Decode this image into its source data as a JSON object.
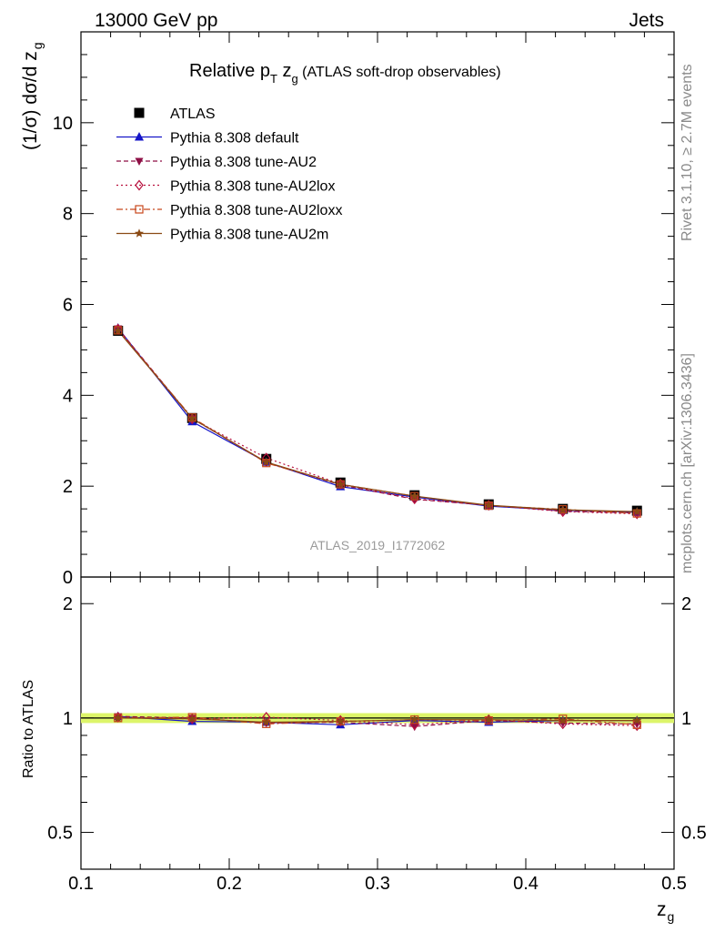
{
  "header": {
    "left": "13000 GeV pp",
    "right": "Jets"
  },
  "title": {
    "prefix": "Relative p",
    "sub1": "T",
    "mid": " z",
    "sub2": "g",
    "suffix": " (ATLAS soft-drop observables)"
  },
  "ylabel_main": {
    "text": "(1/σ) dσ/d z",
    "sub": "g"
  },
  "ylabel_ratio": "Ratio to ATLAS",
  "xlabel": {
    "text": "z",
    "sub": "g"
  },
  "watermark": "ATLAS_2019_I1772062",
  "side_text": {
    "rivet": "Rivet 3.1.10, ≥ 2.7M events",
    "mcplots": "mcplots.cern.ch [arXiv:1306.3436]"
  },
  "chart_data": [
    {
      "type": "line",
      "panel": "main",
      "xlim": [
        0.1,
        0.5
      ],
      "ylim": [
        0,
        12
      ],
      "x_ticks": [
        0.1,
        0.2,
        0.3,
        0.4,
        0.5
      ],
      "y_ticks": [
        0,
        2,
        4,
        6,
        8,
        10
      ],
      "y_tick_labels": [
        "0",
        "2",
        "4",
        "6",
        "8",
        "10"
      ],
      "x": [
        0.125,
        0.175,
        0.225,
        0.275,
        0.325,
        0.375,
        0.425,
        0.475
      ],
      "series": [
        {
          "name": "ATLAS",
          "color": "#000000",
          "marker": "square",
          "line": "none",
          "values": [
            5.42,
            3.5,
            2.6,
            2.08,
            1.8,
            1.6,
            1.5,
            1.46
          ]
        },
        {
          "name": "Pythia 8.308 default",
          "color": "#1515c8",
          "marker": "triangle-up",
          "line": "solid",
          "values": [
            5.48,
            3.42,
            2.53,
            1.99,
            1.76,
            1.56,
            1.47,
            1.43
          ]
        },
        {
          "name": "Pythia 8.308 tune-AU2",
          "color": "#8e0f45",
          "marker": "triangle-down",
          "line": "dashed",
          "values": [
            5.47,
            3.49,
            2.52,
            2.03,
            1.71,
            1.58,
            1.45,
            1.41
          ]
        },
        {
          "name": "Pythia 8.308 tune-AU2lox",
          "color": "#b8103e",
          "marker": "diamond-open",
          "line": "dotted",
          "values": [
            5.46,
            3.48,
            2.62,
            2.05,
            1.72,
            1.58,
            1.44,
            1.39
          ]
        },
        {
          "name": "Pythia 8.308 tune-AU2loxx",
          "color": "#c8471c",
          "marker": "square-open",
          "line": "dashdot",
          "values": [
            5.43,
            3.51,
            2.51,
            2.04,
            1.78,
            1.57,
            1.49,
            1.4
          ]
        },
        {
          "name": "Pythia 8.308 tune-AU2m",
          "color": "#8a4a14",
          "marker": "star",
          "line": "solid",
          "values": [
            5.42,
            3.49,
            2.53,
            2.04,
            1.78,
            1.58,
            1.48,
            1.44
          ]
        }
      ]
    },
    {
      "type": "line",
      "panel": "ratio",
      "xlim": [
        0.1,
        0.5
      ],
      "ylim": [
        0.4,
        2.35
      ],
      "x_tick_labels": [
        "0.1",
        "0.2",
        "0.3",
        "0.4",
        "0.5"
      ],
      "y_tick_labels": [
        "0.5",
        "1",
        "2"
      ],
      "band": {
        "low": 0.97,
        "high": 1.03,
        "color": "#ddf56a"
      },
      "x": [
        0.125,
        0.175,
        0.225,
        0.275,
        0.325,
        0.375,
        0.425,
        0.475
      ],
      "series": [
        {
          "name": "ATLAS",
          "values": [
            1,
            1,
            1,
            1,
            1,
            1,
            1,
            1
          ]
        },
        {
          "name": "Pythia 8.308 default",
          "values": [
            1.01,
            0.98,
            0.975,
            0.96,
            0.985,
            0.975,
            0.985,
            0.985
          ]
        },
        {
          "name": "Pythia 8.308 tune-AU2",
          "values": [
            1.01,
            1.0,
            0.97,
            0.975,
            0.95,
            0.985,
            0.97,
            0.965
          ]
        },
        {
          "name": "Pythia 8.308 tune-AU2lox",
          "values": [
            1.005,
            0.995,
            1.005,
            0.985,
            0.96,
            0.99,
            0.965,
            0.955
          ]
        },
        {
          "name": "Pythia 8.308 tune-AU2loxx",
          "values": [
            1.0,
            1.005,
            0.965,
            0.98,
            0.99,
            0.985,
            0.995,
            0.96
          ]
        },
        {
          "name": "Pythia 8.308 tune-AU2m",
          "values": [
            1.0,
            0.995,
            0.975,
            0.98,
            0.99,
            0.99,
            0.985,
            0.985
          ]
        }
      ]
    }
  ]
}
